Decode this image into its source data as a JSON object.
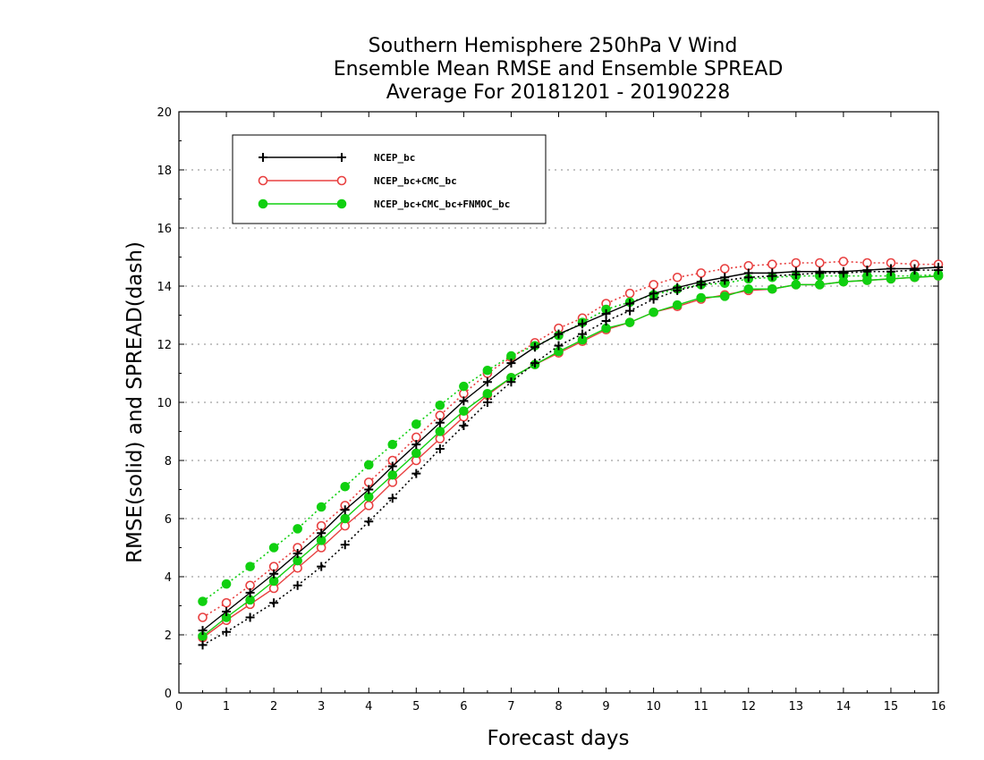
{
  "chart_data": {
    "type": "line",
    "title": [
      "Southern Hemisphere 250hPa V Wind",
      "Ensemble Mean RMSE and Ensemble SPREAD",
      "Average For 20181201 - 20190228"
    ],
    "xlabel": "Forecast days",
    "ylabel": "RMSE(solid) and SPREAD(dash)",
    "xlim": [
      0,
      16
    ],
    "ylim": [
      0,
      20
    ],
    "xticks": [
      0,
      1,
      2,
      3,
      4,
      5,
      6,
      7,
      8,
      9,
      10,
      11,
      12,
      13,
      14,
      15,
      16
    ],
    "yticks": [
      0,
      2,
      4,
      6,
      8,
      10,
      12,
      14,
      16,
      18,
      20
    ],
    "grid": "horizontal dotted",
    "legend_position": "top-left",
    "x": [
      0.5,
      1,
      1.5,
      2,
      2.5,
      3,
      3.5,
      4,
      4.5,
      5,
      5.5,
      6,
      6.5,
      7,
      7.5,
      8,
      8.5,
      9,
      9.5,
      10,
      10.5,
      11,
      11.5,
      12,
      12.5,
      13,
      13.5,
      14,
      14.5,
      15,
      15.5,
      16
    ],
    "series": [
      {
        "name": "NCEP_bc",
        "color": "#000000",
        "marker": "plus",
        "rmse": [
          2.15,
          2.8,
          3.45,
          4.1,
          4.8,
          5.5,
          6.3,
          7.0,
          7.8,
          8.55,
          9.3,
          10.05,
          10.7,
          11.35,
          11.9,
          12.35,
          12.7,
          13.05,
          13.4,
          13.75,
          13.95,
          14.15,
          14.3,
          14.45,
          14.45,
          14.5,
          14.5,
          14.5,
          14.55,
          14.6,
          14.6,
          14.65
        ],
        "spread": [
          1.65,
          2.1,
          2.6,
          3.1,
          3.7,
          4.35,
          5.1,
          5.9,
          6.7,
          7.55,
          8.4,
          9.2,
          10.0,
          10.7,
          11.35,
          11.95,
          12.35,
          12.8,
          13.15,
          13.55,
          13.85,
          14.05,
          14.2,
          14.3,
          14.35,
          14.4,
          14.45,
          14.45,
          14.5,
          14.5,
          14.55,
          14.55
        ]
      },
      {
        "name": "NCEP_bc+CMC_bc",
        "color": "#e84040",
        "marker": "open-circle",
        "rmse": [
          1.9,
          2.5,
          3.05,
          3.6,
          4.3,
          5.0,
          5.75,
          6.45,
          7.25,
          8.0,
          8.75,
          9.5,
          10.25,
          10.85,
          11.3,
          11.7,
          12.1,
          12.5,
          12.75,
          13.1,
          13.3,
          13.55,
          13.7,
          13.85,
          13.9,
          14.05,
          14.05,
          14.15,
          14.2,
          14.25,
          14.3,
          14.35
        ],
        "spread": [
          2.6,
          3.1,
          3.7,
          4.35,
          5.0,
          5.75,
          6.45,
          7.25,
          8.0,
          8.8,
          9.55,
          10.3,
          11.0,
          11.55,
          12.05,
          12.55,
          12.9,
          13.4,
          13.75,
          14.05,
          14.3,
          14.45,
          14.6,
          14.7,
          14.75,
          14.8,
          14.8,
          14.85,
          14.8,
          14.8,
          14.75,
          14.75
        ]
      },
      {
        "name": "NCEP_bc+CMC_bc+FNMOC_bc",
        "color": "#10d010",
        "marker": "filled-circle",
        "rmse": [
          1.95,
          2.6,
          3.2,
          3.85,
          4.55,
          5.25,
          6.0,
          6.75,
          7.5,
          8.25,
          9.0,
          9.7,
          10.3,
          10.85,
          11.3,
          11.75,
          12.15,
          12.55,
          12.75,
          13.1,
          13.35,
          13.6,
          13.65,
          13.9,
          13.9,
          14.05,
          14.05,
          14.15,
          14.2,
          14.25,
          14.3,
          14.35
        ],
        "spread": [
          3.15,
          3.75,
          4.35,
          5.0,
          5.65,
          6.4,
          7.1,
          7.85,
          8.55,
          9.25,
          9.9,
          10.55,
          11.1,
          11.6,
          11.95,
          12.3,
          12.75,
          13.2,
          13.45,
          13.7,
          13.9,
          14.05,
          14.1,
          14.25,
          14.3,
          14.35,
          14.35,
          14.35,
          14.35,
          14.35,
          14.35,
          14.4
        ]
      }
    ]
  }
}
